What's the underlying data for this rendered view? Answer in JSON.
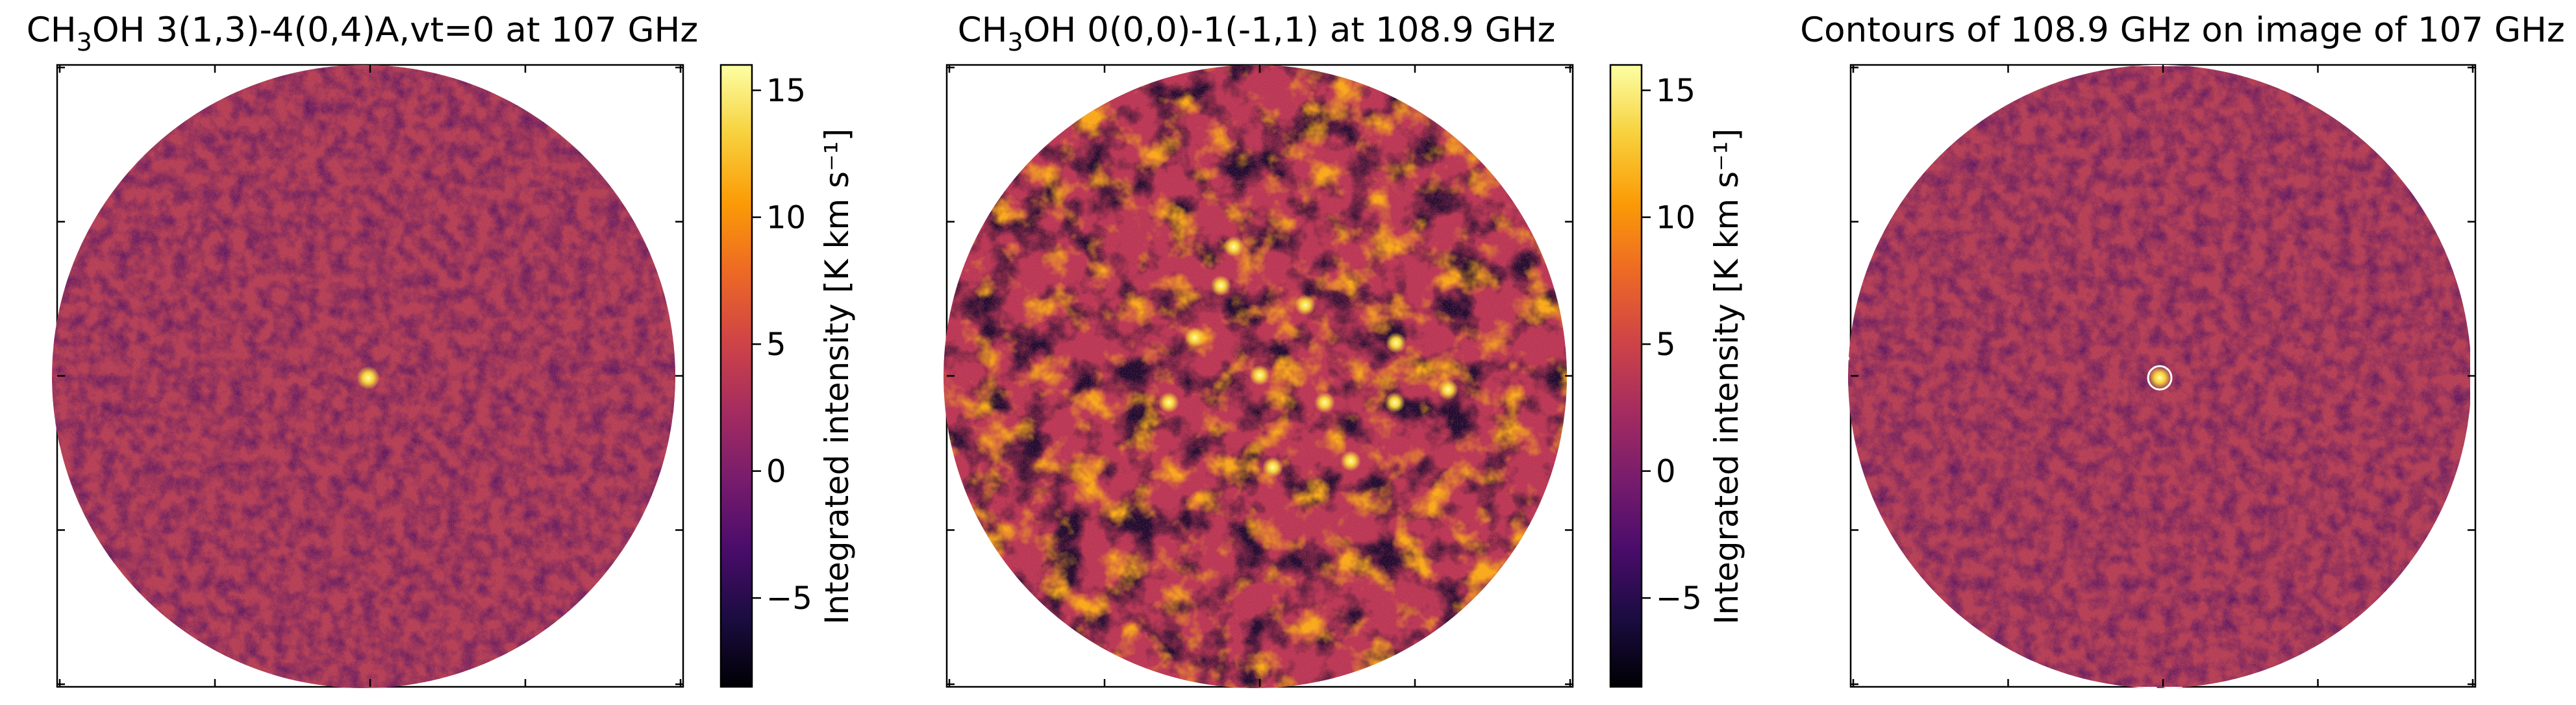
{
  "chart_data": [
    {
      "type": "heatmap",
      "title": "CH3OH 3(1,3)-4(0,4)A,vt=0 at 107 GHz",
      "title_parts": {
        "prefix": "CH",
        "sub": "3",
        "suffix": "OH 3(1,3)-4(0,4)A,vt=0 at 107 GHz"
      },
      "field_shape": "circle",
      "colormap": "inferno",
      "colorbar": {
        "label": "Integrated intensity [K km s⁻¹]",
        "range": [
          -8.5,
          16
        ],
        "ticks": [
          -5,
          0,
          5,
          10,
          15
        ],
        "tick_labels": [
          "−5",
          "0",
          "5",
          "10",
          "15"
        ]
      },
      "features": {
        "background_level": 1.0,
        "compact_source_peak": 16
      }
    },
    {
      "type": "heatmap",
      "title": "CH3OH 0(0,0)-1(-1,1) at 108.9 GHz",
      "title_parts": {
        "prefix": "CH",
        "sub": "3",
        "suffix": "OH 0(0,0)-1(-1,1) at 108.9 GHz"
      },
      "field_shape": "circle",
      "colormap": "inferno",
      "colorbar": {
        "label": "Integrated intensity [K km s⁻¹]",
        "range": [
          -8.5,
          16
        ],
        "ticks": [
          -5,
          0,
          5,
          10,
          15
        ],
        "tick_labels": [
          "−5",
          "0",
          "5",
          "10",
          "15"
        ]
      },
      "features": {
        "background_level": 3.0,
        "emission_peaks": 12
      }
    },
    {
      "type": "heatmap",
      "title": "Contours of 108.9 GHz on image of 107 GHz",
      "field_shape": "circle",
      "colormap": "inferno",
      "contour_color": "#ffffff",
      "contour_source": "108.9 GHz",
      "image_source": "107 GHz"
    }
  ],
  "colors": {
    "background": "#ffffff",
    "axes": "#000000",
    "contour": "#ffffff",
    "inferno_stops": [
      "#000004",
      "#1b0c41",
      "#4a0c6b",
      "#781c6d",
      "#a52c60",
      "#cf4446",
      "#ed6925",
      "#fb9b06",
      "#f7d13d",
      "#fcffa4"
    ]
  }
}
